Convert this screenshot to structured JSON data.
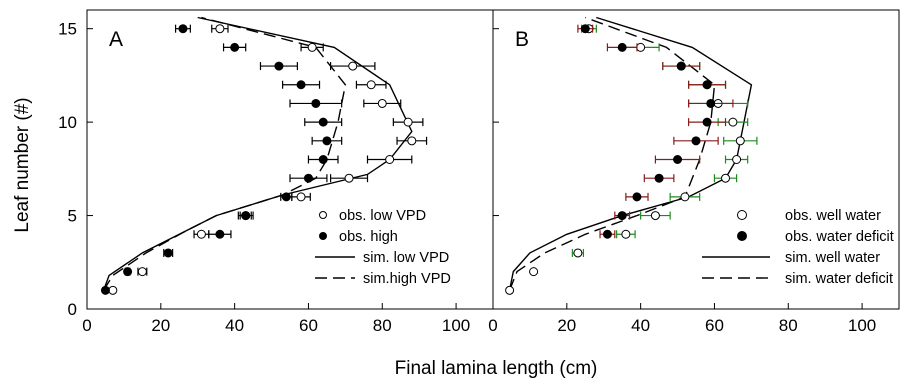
{
  "chart_data": [
    {
      "type": "scatter",
      "panel_label": "A",
      "xlabel": "Final lamina length (cm)",
      "ylabel": "Leaf number (#)",
      "xlim": [
        0,
        110
      ],
      "ylim": [
        0,
        16
      ],
      "xticks": [
        0,
        20,
        40,
        60,
        80,
        100
      ],
      "yticks": [
        0,
        5,
        10,
        15
      ],
      "legend_position": "bottom-right",
      "series": [
        {
          "name": "obs. low VPD",
          "kind": "points",
          "marker": "open-circle",
          "errcolor": "#000000",
          "points": [
            [
              7,
              1,
              0
            ],
            [
              15,
              2,
              1.2
            ],
            [
              31,
              4,
              2
            ],
            [
              43,
              5,
              2
            ],
            [
              58,
              6,
              2.5
            ],
            [
              71,
              7,
              5
            ],
            [
              82,
              8,
              6
            ],
            [
              88,
              9,
              4
            ],
            [
              87,
              10,
              4
            ],
            [
              80,
              11,
              5
            ],
            [
              77,
              12,
              4
            ],
            [
              72,
              13,
              6
            ],
            [
              61,
              14,
              3
            ],
            [
              36,
              15,
              2.2
            ]
          ]
        },
        {
          "name": "obs. high",
          "kind": "points",
          "marker": "filled-circle",
          "errcolor": "#000000",
          "points": [
            [
              5,
              1,
              0
            ],
            [
              11,
              2,
              0.6
            ],
            [
              22,
              3,
              1.2
            ],
            [
              36,
              4,
              3
            ],
            [
              43,
              5,
              1.5
            ],
            [
              54,
              6,
              1.5
            ],
            [
              60,
              7,
              5
            ],
            [
              64,
              8,
              4
            ],
            [
              65,
              9,
              4
            ],
            [
              64,
              10,
              5
            ],
            [
              62,
              11,
              7
            ],
            [
              58,
              12,
              5
            ],
            [
              52,
              13,
              5
            ],
            [
              40,
              14,
              3
            ],
            [
              26,
              15,
              2
            ]
          ]
        },
        {
          "name": "sim. low VPD",
          "kind": "line",
          "dash": "",
          "points": [
            [
              4.5,
              1
            ],
            [
              6,
              1.8
            ],
            [
              15,
              3
            ],
            [
              27,
              4.2
            ],
            [
              35,
              5
            ],
            [
              53,
              6.1
            ],
            [
              76,
              7.2
            ],
            [
              82,
              8
            ],
            [
              88,
              9.5
            ],
            [
              82,
              12
            ],
            [
              67,
              14
            ],
            [
              30,
              15.6
            ]
          ]
        },
        {
          "name": "sim.high VPD",
          "kind": "line",
          "dash": "12,6",
          "points": [
            [
              4.5,
              1
            ],
            [
              7,
              1.8
            ],
            [
              16,
              3
            ],
            [
              27,
              4.2
            ],
            [
              35,
              5
            ],
            [
              53,
              6.1
            ],
            [
              62,
              7
            ],
            [
              65,
              8
            ],
            [
              68,
              10
            ],
            [
              70,
              12
            ],
            [
              62,
              14
            ],
            [
              31,
              15.6
            ]
          ]
        }
      ]
    },
    {
      "type": "scatter",
      "panel_label": "B",
      "xlabel": "Final lamina length (cm)",
      "ylabel": "Leaf number (#)",
      "xlim": [
        0,
        110
      ],
      "ylim": [
        0,
        16
      ],
      "xticks": [
        0,
        20,
        40,
        60,
        80,
        100
      ],
      "yticks": [
        0,
        5,
        10,
        15
      ],
      "legend_position": "bottom-right",
      "series": [
        {
          "name": "obs. well water",
          "kind": "points",
          "marker": "open-circle",
          "errcolor": "#1e8a1e",
          "points": [
            [
              4.5,
              1,
              0
            ],
            [
              11,
              2,
              0
            ],
            [
              23,
              3,
              1.5
            ],
            [
              36,
              4,
              2.5
            ],
            [
              44,
              5,
              4
            ],
            [
              52,
              6,
              4
            ],
            [
              63,
              7,
              3
            ],
            [
              66,
              8,
              3
            ],
            [
              67,
              9,
              4.5
            ],
            [
              65,
              10,
              4
            ],
            [
              61,
              11,
              8
            ],
            [
              58,
              12,
              5
            ],
            [
              51,
              13,
              5
            ],
            [
              40,
              14,
              5
            ],
            [
              26,
              15,
              2
            ]
          ]
        },
        {
          "name": "obs. water deficit",
          "kind": "points",
          "marker": "filled-circle",
          "errcolor": "#8b1a1a",
          "points": [
            [
              31,
              4,
              2
            ],
            [
              35,
              5,
              2
            ],
            [
              39,
              6,
              3
            ],
            [
              45,
              7,
              4
            ],
            [
              50,
              8,
              6
            ],
            [
              55,
              9,
              6
            ],
            [
              58,
              10,
              5
            ],
            [
              59,
              11,
              6
            ],
            [
              58,
              12,
              5
            ],
            [
              51,
              13,
              5
            ],
            [
              35,
              14,
              4
            ],
            [
              25,
              15,
              2
            ]
          ]
        },
        {
          "name": "sim. well water",
          "kind": "line",
          "dash": "",
          "points": [
            [
              4.5,
              1
            ],
            [
              5.5,
              2
            ],
            [
              10,
              3
            ],
            [
              20,
              4
            ],
            [
              35,
              5
            ],
            [
              53,
              6
            ],
            [
              63,
              7
            ],
            [
              66,
              8
            ],
            [
              68,
              10
            ],
            [
              70,
              12
            ],
            [
              54,
              14
            ],
            [
              28,
              15.6
            ]
          ]
        },
        {
          "name": "sim. water deficit",
          "kind": "line",
          "dash": "12,6",
          "points": [
            [
              4.5,
              1
            ],
            [
              6.5,
              2
            ],
            [
              14,
              3
            ],
            [
              25,
              4
            ],
            [
              39,
              5
            ],
            [
              52,
              6
            ],
            [
              56,
              8
            ],
            [
              59,
              10
            ],
            [
              60,
              12
            ],
            [
              47,
              14
            ],
            [
              25,
              15.6
            ]
          ]
        }
      ]
    }
  ]
}
